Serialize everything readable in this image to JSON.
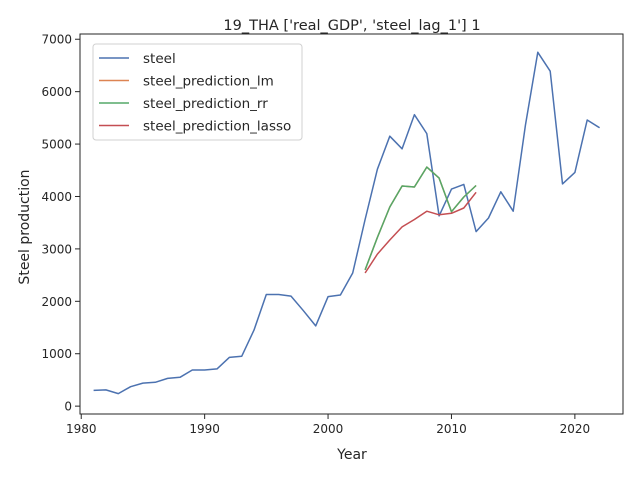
{
  "chart_data": {
    "type": "line",
    "title": "19_THA ['real_GDP', 'steel_lag_1'] 1",
    "xlabel": "Year",
    "ylabel": "Steel production",
    "xlim": [
      1979.9,
      2023.9
    ],
    "ylim": [
      -150,
      7100
    ],
    "xticks": [
      1980,
      1990,
      2000,
      2010,
      2020
    ],
    "yticks": [
      0,
      1000,
      2000,
      3000,
      4000,
      5000,
      6000,
      7000
    ],
    "grid": false,
    "legend_position": "upper-left",
    "series": [
      {
        "name": "steel",
        "color": "#4c72b0",
        "x": [
          1981,
          1982,
          1983,
          1984,
          1985,
          1986,
          1987,
          1988,
          1989,
          1990,
          1991,
          1992,
          1993,
          1994,
          1995,
          1996,
          1997,
          1998,
          1999,
          2000,
          2001,
          2002,
          2003,
          2004,
          2005,
          2006,
          2007,
          2008,
          2009,
          2010,
          2011,
          2012,
          2013,
          2014,
          2015,
          2016,
          2017,
          2018,
          2019,
          2020,
          2021,
          2022
        ],
        "values": [
          300,
          310,
          240,
          370,
          440,
          455,
          530,
          550,
          690,
          690,
          710,
          930,
          950,
          1450,
          2130,
          2130,
          2100,
          1820,
          1530,
          2090,
          2120,
          2540,
          3560,
          4520,
          5150,
          4910,
          5560,
          5200,
          3630,
          4140,
          4230,
          3330,
          3590,
          4090,
          3720,
          5370,
          6750,
          6390,
          4240,
          4460,
          5460,
          5310
        ]
      },
      {
        "name": "steel_prediction_lm",
        "color": "#dd8452",
        "x": [
          2003,
          2004,
          2005,
          2006,
          2007,
          2008,
          2009,
          2010,
          2011,
          2012
        ],
        "values": [
          2600,
          3220,
          3800,
          4200,
          4180,
          4560,
          4350,
          3710,
          3990,
          4210
        ]
      },
      {
        "name": "steel_prediction_rr",
        "color": "#55a868",
        "x": [
          2003,
          2004,
          2005,
          2006,
          2007,
          2008,
          2009,
          2010,
          2011,
          2012
        ],
        "values": [
          2600,
          3220,
          3800,
          4200,
          4180,
          4560,
          4350,
          3710,
          3990,
          4210
        ]
      },
      {
        "name": "steel_prediction_lasso",
        "color": "#c44e52",
        "x": [
          2003,
          2004,
          2005,
          2006,
          2007,
          2008,
          2009,
          2010,
          2011,
          2012
        ],
        "values": [
          2540,
          2900,
          3170,
          3420,
          3560,
          3720,
          3650,
          3680,
          3780,
          4080
        ]
      }
    ]
  }
}
